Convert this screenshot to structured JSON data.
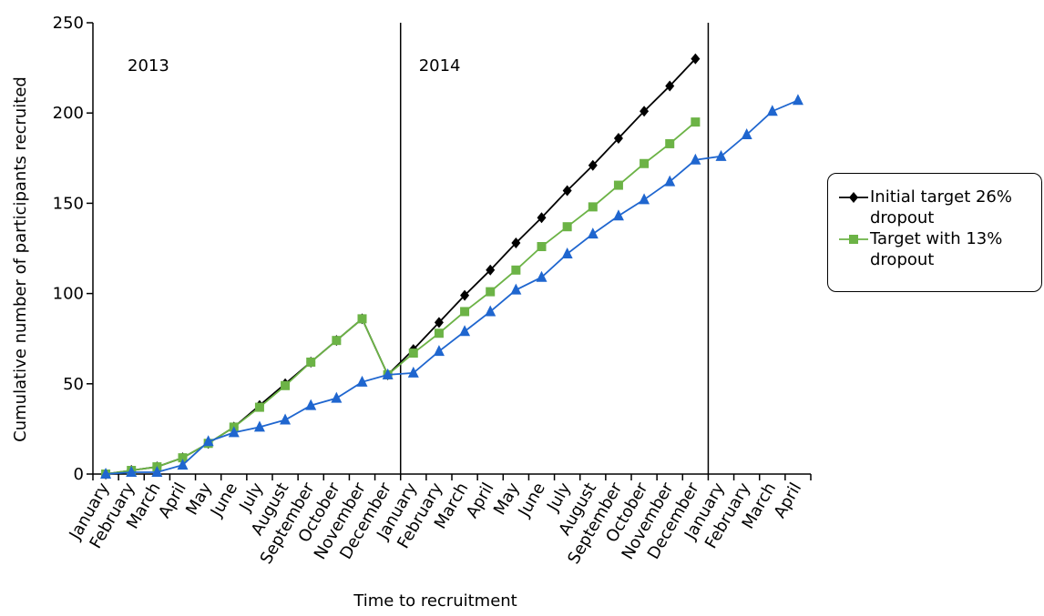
{
  "chart_data": {
    "type": "line",
    "x_label": "Time to recruitment",
    "y_label": "Cumulative number of participants recruited",
    "annotations": [
      "2013",
      "2014"
    ],
    "categories": [
      "January",
      "February",
      "March",
      "April",
      "May",
      "June",
      "July",
      "August",
      "September",
      "October",
      "November",
      "December",
      "January",
      "February",
      "March",
      "April",
      "May",
      "June",
      "July",
      "August",
      "September",
      "October",
      "November",
      "December",
      "January",
      "February",
      "March",
      "April"
    ],
    "series": [
      {
        "name": "Initial target 26% dropout",
        "color": "#000000",
        "marker": "diamond",
        "values": [
          0,
          2,
          4,
          9,
          17,
          26,
          38,
          50,
          62,
          74,
          86,
          55,
          69,
          84,
          99,
          113,
          128,
          142,
          157,
          171,
          186,
          201,
          215,
          230,
          null,
          null,
          null,
          null
        ]
      },
      {
        "name": "Target with 13% dropout",
        "color": "#6cb346",
        "marker": "square",
        "values": [
          0,
          2,
          4,
          9,
          17,
          26,
          37,
          49,
          62,
          74,
          86,
          55,
          67,
          78,
          90,
          101,
          113,
          126,
          137,
          148,
          160,
          172,
          183,
          195,
          null,
          null,
          null,
          null
        ]
      },
      {
        "color": "#1f66cf",
        "marker": "triangle",
        "values": [
          0,
          1,
          1,
          5,
          18,
          23,
          26,
          30,
          38,
          42,
          51,
          55,
          56,
          68,
          79,
          90,
          102,
          109,
          122,
          133,
          143,
          152,
          162,
          174,
          176,
          188,
          201,
          207
        ]
      }
    ],
    "ylim": [
      0,
      250
    ],
    "yticks": [
      0,
      50,
      100,
      150,
      200,
      250
    ],
    "grid": false
  }
}
